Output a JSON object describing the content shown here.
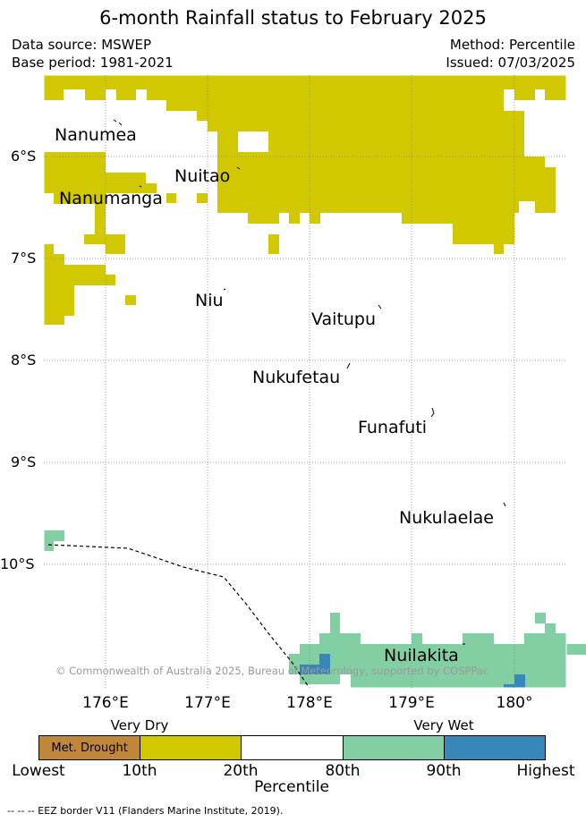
{
  "title": "6-month Rainfall status to February 2025",
  "meta": {
    "data_source": "Data source: MSWEP",
    "base_period": "Base period: 1981-2021",
    "method": "Method: Percentile",
    "issued": "Issued: 07/03/2025"
  },
  "colors": {
    "met_drought": "#c0873a",
    "very_dry": "#d2c800",
    "normal": "#ffffff",
    "wet": "#83cfa4",
    "very_wet": "#3787b8"
  },
  "lat_labels": [
    "6°S",
    "7°S",
    "8°S",
    "9°S",
    "10°S"
  ],
  "lon_labels": [
    "176°E",
    "177°E",
    "178°E",
    "179°E",
    "180°"
  ],
  "islands": [
    {
      "name": "Nanumea",
      "lon": 176.1,
      "lat": -5.67
    },
    {
      "name": "Nuitao",
      "lon": 177.3,
      "lat": -6.12
    },
    {
      "name": "Nanumanga",
      "lon": 176.32,
      "lat": -6.3
    },
    {
      "name": "Niu",
      "lon": 177.16,
      "lat": -7.29
    },
    {
      "name": "Vaitupu",
      "lon": 178.68,
      "lat": -7.48
    },
    {
      "name": "Nukufetau",
      "lon": 178.37,
      "lat": -8.03
    },
    {
      "name": "Funafuti",
      "lon": 179.2,
      "lat": -8.52
    },
    {
      "name": "Nukulaelae",
      "lon": 179.83,
      "lat": -9.38
    },
    {
      "name": "Nuilakita",
      "lon": 179.5,
      "lat": -10.72
    }
  ],
  "copyright": "© Commonwealth of Australia 2025, Bureau of Meteorology, supported by COSPPac",
  "colorbar": {
    "very_dry": "Very Dry",
    "very_wet": "Very Wet",
    "met_drought": "Met. Drought",
    "ticks": [
      "Lowest",
      "10th",
      "20th",
      "80th",
      "90th",
      "Highest"
    ],
    "xlabel": "Percentile"
  },
  "footer": "-- -- -- EEZ border V11 (Flanders Marine Institute, 2019)."
}
